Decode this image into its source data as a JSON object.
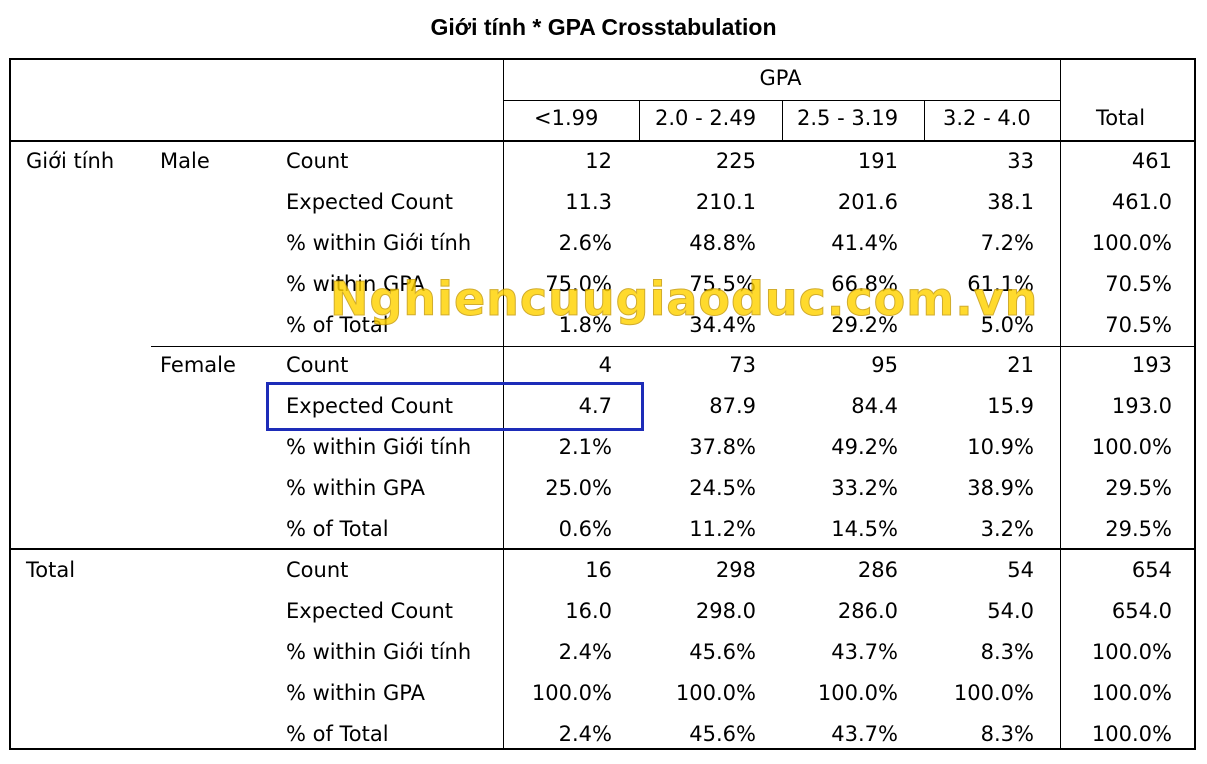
{
  "title": "Giới tính * GPA Crosstabulation",
  "header": {
    "group_label": "GPA",
    "columns": [
      "<1.99",
      "2.0 - 2.49",
      "2.5 - 3.19",
      "3.2 - 4.0"
    ],
    "total_label": "Total"
  },
  "row_var": "Giới tính",
  "groups": [
    {
      "label": "Male",
      "rows": [
        {
          "stat": "Count",
          "values": [
            "12",
            "225",
            "191",
            "33"
          ],
          "total": "461"
        },
        {
          "stat": "Expected Count",
          "values": [
            "11.3",
            "210.1",
            "201.6",
            "38.1"
          ],
          "total": "461.0"
        },
        {
          "stat": "% within Giới tính",
          "values": [
            "2.6%",
            "48.8%",
            "41.4%",
            "7.2%"
          ],
          "total": "100.0%"
        },
        {
          "stat": "% within GPA",
          "values": [
            "75.0%",
            "75.5%",
            "66.8%",
            "61.1%"
          ],
          "total": "70.5%"
        },
        {
          "stat": "% of Total",
          "values": [
            "1.8%",
            "34.4%",
            "29.2%",
            "5.0%"
          ],
          "total": "70.5%"
        }
      ]
    },
    {
      "label": "Female",
      "rows": [
        {
          "stat": "Count",
          "values": [
            "4",
            "73",
            "95",
            "21"
          ],
          "total": "193"
        },
        {
          "stat": "Expected Count",
          "values": [
            "4.7",
            "87.9",
            "84.4",
            "15.9"
          ],
          "total": "193.0"
        },
        {
          "stat": "% within Giới tính",
          "values": [
            "2.1%",
            "37.8%",
            "49.2%",
            "10.9%"
          ],
          "total": "100.0%"
        },
        {
          "stat": "% within GPA",
          "values": [
            "25.0%",
            "24.5%",
            "33.2%",
            "38.9%"
          ],
          "total": "29.5%"
        },
        {
          "stat": "% of Total",
          "values": [
            "0.6%",
            "11.2%",
            "14.5%",
            "3.2%"
          ],
          "total": "29.5%"
        }
      ]
    }
  ],
  "total_group": {
    "label": "Total",
    "rows": [
      {
        "stat": "Count",
        "values": [
          "16",
          "298",
          "286",
          "54"
        ],
        "total": "654"
      },
      {
        "stat": "Expected Count",
        "values": [
          "16.0",
          "298.0",
          "286.0",
          "54.0"
        ],
        "total": "654.0"
      },
      {
        "stat": "% within Giới tính",
        "values": [
          "2.4%",
          "45.6%",
          "43.7%",
          "8.3%"
        ],
        "total": "100.0%"
      },
      {
        "stat": "% within GPA",
        "values": [
          "100.0%",
          "100.0%",
          "100.0%",
          "100.0%"
        ],
        "total": "100.0%"
      },
      {
        "stat": "% of Total",
        "values": [
          "2.4%",
          "45.6%",
          "43.7%",
          "8.3%"
        ],
        "total": "100.0%"
      }
    ]
  },
  "watermark": "Nghiencuugiaoduc.com.vn",
  "highlight_color": "#1d2cb8"
}
